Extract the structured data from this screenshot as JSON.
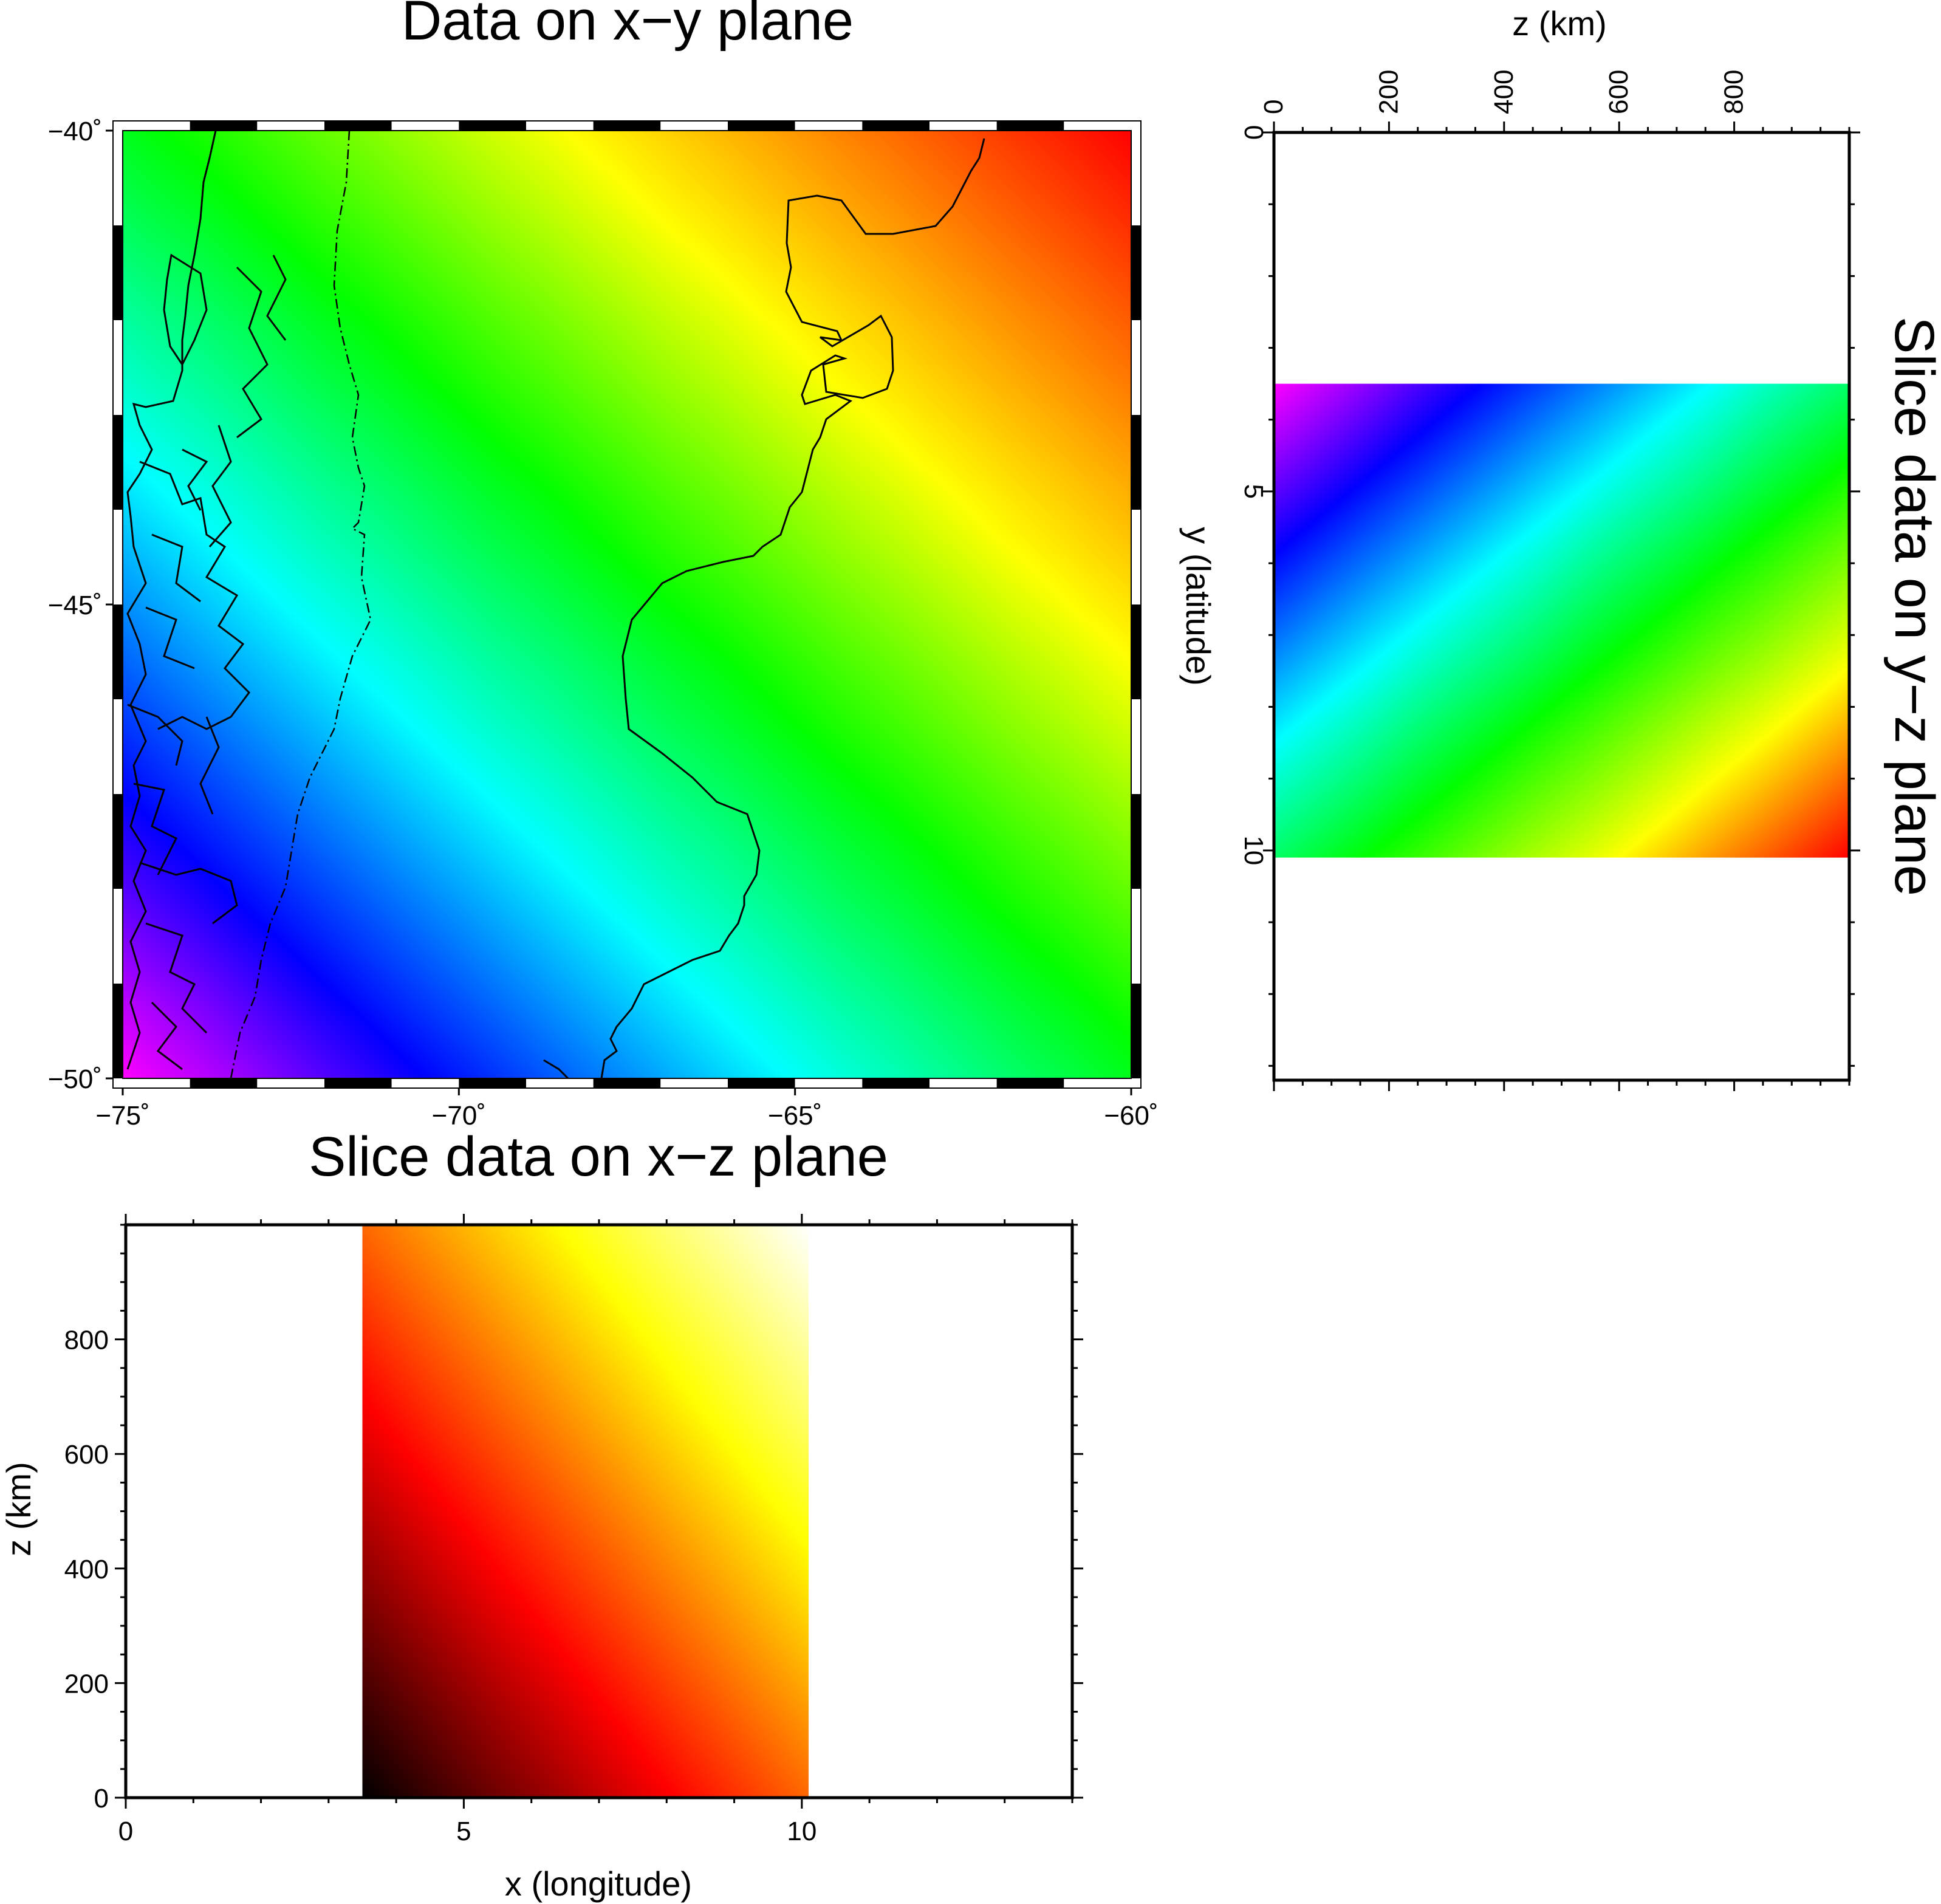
{
  "chart_data": [
    {
      "type": "heatmap",
      "title": "Data on x−y plane",
      "x": {
        "min": -75,
        "max": -60,
        "tick_values": [
          -75,
          -70,
          -65,
          -60
        ],
        "tick_labels": [
          "−75˚",
          "−70˚",
          "−65˚",
          "−60˚"
        ]
      },
      "y": {
        "min": -50,
        "max": -40,
        "tick_values": [
          -40,
          -45,
          -50
        ],
        "tick_labels": [
          "−40˚",
          "−45˚",
          "−50˚"
        ]
      },
      "colormap": "rainbow",
      "colormap_colors": [
        "#ff00ff",
        "#0000ff",
        "#00ffff",
        "#00ff00",
        "#ffff00",
        "#ff0000"
      ],
      "gradient_direction": "low at bottom-left, high at top-right",
      "overlay": "coastlines and national border",
      "frame": "map scale-bar frame"
    },
    {
      "type": "heatmap",
      "title": "Slice data on y−z plane",
      "xlabel": "z (km)",
      "ylabel": "y (latitude)",
      "xlim": [
        0,
        1000
      ],
      "ylim": [
        13.2,
        0
      ],
      "xticks": [
        "0",
        "200",
        "400",
        "600",
        "800"
      ],
      "yticks": [
        "0",
        "5",
        "10"
      ],
      "data_extent": {
        "z": [
          0,
          1000
        ],
        "y": [
          3.5,
          10.1
        ]
      },
      "colormap": "rainbow",
      "colormap_colors": [
        "#ff00ff",
        "#0000ff",
        "#00ffff",
        "#00ff00",
        "#ffff00",
        "#ff0000"
      ],
      "gradient_direction": "low at top-left, high at bottom-right"
    },
    {
      "type": "heatmap",
      "title": "Slice data on x−z plane",
      "xlabel": "x (longitude)",
      "ylabel": "z (km)",
      "xlim": [
        0,
        14
      ],
      "ylim": [
        0,
        1000
      ],
      "xticks": [
        "0",
        "5",
        "10"
      ],
      "yticks": [
        "0",
        "200",
        "400",
        "600",
        "800"
      ],
      "data_extent": {
        "x": [
          3.5,
          10.1
        ],
        "z": [
          0,
          1000
        ]
      },
      "colormap": "hot",
      "colormap_colors": [
        "#000000",
        "#ff0000",
        "#ffff00",
        "#ffffff"
      ],
      "gradient_direction": "low at bottom-left, high at top-right"
    }
  ]
}
